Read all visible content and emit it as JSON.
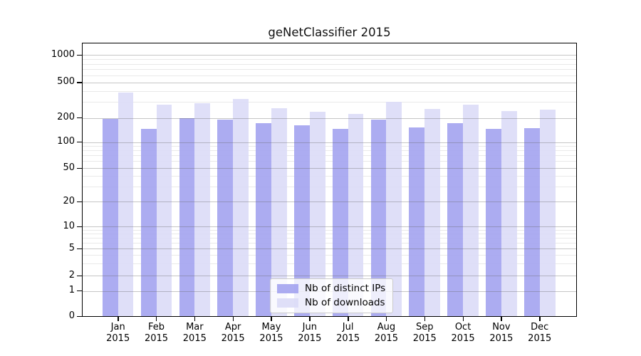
{
  "chart_data": {
    "type": "bar",
    "title": "geNetClassifier 2015",
    "year": "2015",
    "categories": [
      "Jan",
      "Feb",
      "Mar",
      "Apr",
      "May",
      "Jun",
      "Jul",
      "Aug",
      "Sep",
      "Oct",
      "Nov",
      "Dec"
    ],
    "series": [
      {
        "name": "Nb of distinct IPs",
        "color": "#a0a0ef",
        "values": [
          193,
          146,
          200,
          189,
          173,
          160,
          147,
          192,
          151,
          170,
          145,
          149
        ]
      },
      {
        "name": "Nb of downloads",
        "color": "#dbdbf7",
        "values": [
          385,
          280,
          291,
          325,
          255,
          232,
          220,
          300,
          251,
          279,
          238,
          245
        ]
      }
    ],
    "yticks": [
      0,
      1,
      2,
      5,
      10,
      20,
      50,
      100,
      200,
      500,
      1000
    ],
    "yscale": "symlog",
    "ylim": [
      0,
      1400
    ],
    "grid": "horizontal major and log-minor gridlines",
    "legend_position": "inside-bottom-center",
    "xlabel": "",
    "ylabel": ""
  }
}
